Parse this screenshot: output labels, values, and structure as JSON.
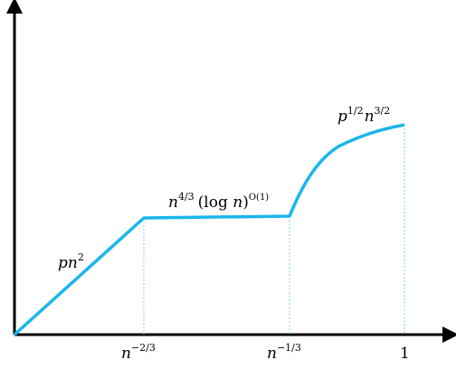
{
  "chart_data": {
    "type": "line",
    "x_ticks": [
      {
        "base": "n",
        "exp": "−2/3"
      },
      {
        "base": "n",
        "exp": "−1/3"
      },
      {
        "base": "1",
        "exp": ""
      }
    ],
    "segments": [
      {
        "label_parts": [
          "p",
          "n",
          "2"
        ]
      },
      {
        "label_parts": [
          "n",
          "4/3",
          "(log ",
          "n",
          ")",
          "O(1)"
        ]
      },
      {
        "label_parts": [
          "p",
          "1/2",
          "n",
          "3/2"
        ]
      }
    ],
    "colors": {
      "curve": "#1ab6ec",
      "guides": "#7fd0f0",
      "axes": "#000000"
    }
  }
}
